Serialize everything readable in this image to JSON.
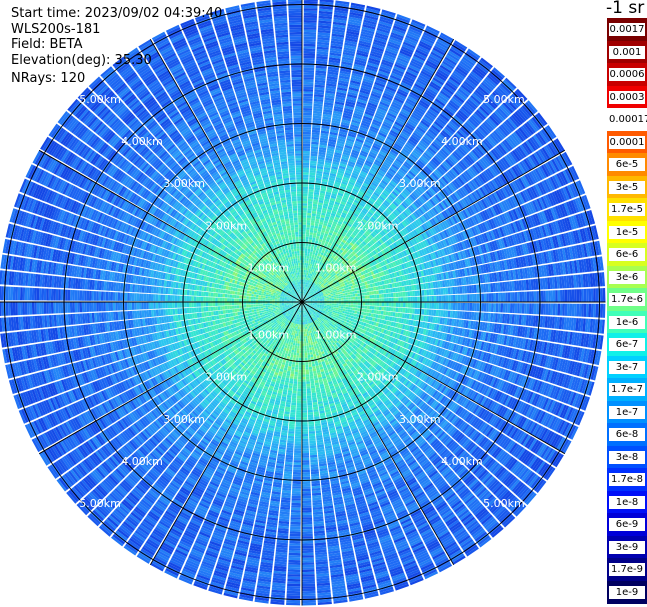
{
  "header": {
    "start_time": "Start time: 2023/09/02 04:39:40",
    "instrument": "WLS200s-181",
    "field": "Field: BETA",
    "elevation": "Elevation(deg): 35.30",
    "nrays": "NRays: 120"
  },
  "colorbar": {
    "title": "-1 sr",
    "labels": [
      "0.0017",
      "0.001",
      "0.0006",
      "0.0003",
      "0.00017",
      "0.0001",
      "6e-5",
      "3e-5",
      "1.7e-5",
      "1e-5",
      "6e-6",
      "3e-6",
      "1.7e-6",
      "1e-6",
      "6e-7",
      "3e-7",
      "1.7e-7",
      "1e-7",
      "6e-8",
      "3e-8",
      "1.7e-8",
      "1e-8",
      "6e-9",
      "3e-9",
      "1.7e-9",
      "1e-9"
    ],
    "colors": [
      "#7a0000",
      "#a00000",
      "#c80000",
      "#f00000",
      "#ffffff",
      "#ff5a00",
      "#ff8a00",
      "#ffb800",
      "#ffe000",
      "#ffff00",
      "#d8ff20",
      "#a8ff50",
      "#70ff88",
      "#40ffb8",
      "#10f0e8",
      "#00d0ff",
      "#00b0ff",
      "#0090ff",
      "#0070ff",
      "#0050ff",
      "#0030ff",
      "#0010f8",
      "#0000d8",
      "#0000b0",
      "#000088",
      "#000060"
    ]
  },
  "chart_data": {
    "type": "heatmap",
    "projection": "polar",
    "field": "BETA",
    "n_rays": 120,
    "range_unit": "km",
    "range_rings": [
      1,
      2,
      3,
      4,
      5
    ],
    "range_ring_labels": [
      "1.00km",
      "2.00km",
      "3.00km",
      "4.00km",
      "5.00km"
    ],
    "spokes_deg": [
      0,
      30,
      60,
      90,
      120,
      150,
      180,
      210,
      240,
      270,
      300,
      330
    ],
    "value_description": "attenuated backscatter, highest (~1e-6 to 1e-5) within ~1-2 km, decreasing to ~1e-8 to 1e-7 at 4-5 km"
  }
}
